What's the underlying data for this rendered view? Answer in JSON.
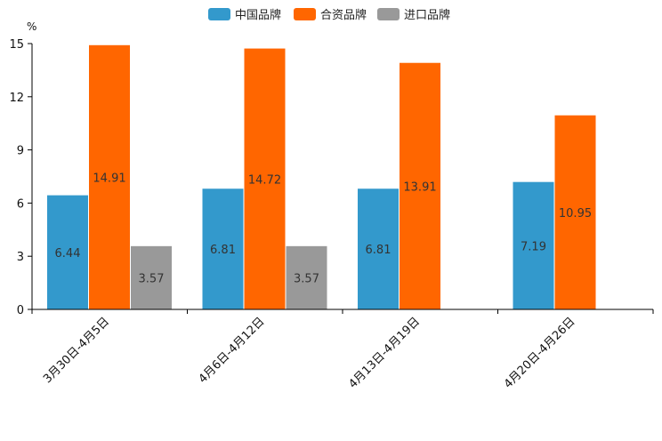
{
  "chart_data": {
    "type": "bar",
    "ylabel": "%",
    "ylim": [
      0,
      15
    ],
    "yticks": [
      0,
      3,
      6,
      9,
      12,
      15
    ],
    "categories": [
      "3月30日-4月5日",
      "4月6日-4月12日",
      "4月13日-4月19日",
      "4月20日-4月26日"
    ],
    "series": [
      {
        "name": "中国品牌",
        "color": "#3399cc",
        "values": [
          6.44,
          6.81,
          6.81,
          7.19
        ]
      },
      {
        "name": "合资品牌",
        "color": "#ff6600",
        "values": [
          14.91,
          14.72,
          13.91,
          10.95
        ]
      },
      {
        "name": "进口品牌",
        "color": "#999999",
        "values": [
          3.57,
          3.57,
          null,
          null
        ]
      }
    ],
    "legend_position": "top-center",
    "grid": false
  }
}
